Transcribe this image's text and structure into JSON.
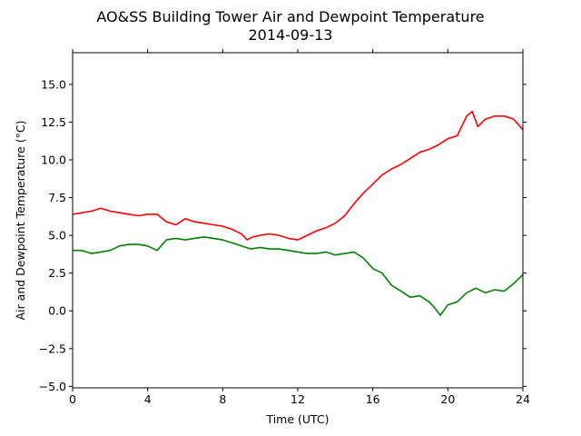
{
  "chart_data": {
    "type": "line",
    "title": "AO&SS Building Tower Air and Dewpoint Temperature",
    "subtitle": "2014-09-13",
    "xlabel": "Time (UTC)",
    "ylabel": "Air and Dewpoint Temperature (°C)",
    "xlim": [
      0,
      24
    ],
    "ylim": [
      -5.1,
      17.1
    ],
    "xticks": [
      0,
      4,
      8,
      12,
      16,
      20,
      24
    ],
    "xtick_labels": [
      "0",
      "4",
      "8",
      "12",
      "16",
      "20",
      "24"
    ],
    "yticks": [
      -5.0,
      -2.5,
      0.0,
      2.5,
      5.0,
      7.5,
      10.0,
      12.5,
      15.0
    ],
    "ytick_labels": [
      "−5.0",
      "−2.5",
      "0.0",
      "2.5",
      "5.0",
      "7.5",
      "10.0",
      "12.5",
      "15.0"
    ],
    "grid": false,
    "series": [
      {
        "color": "#ff0000",
        "x": [
          0,
          0.5,
          1.0,
          1.5,
          2.0,
          2.5,
          3.0,
          3.5,
          4.0,
          4.5,
          5.0,
          5.5,
          6.0,
          6.5,
          7.0,
          7.5,
          8.0,
          8.5,
          9.0,
          9.3,
          9.6,
          10.0,
          10.5,
          11.0,
          11.5,
          12.0,
          12.5,
          13.0,
          13.5,
          14.0,
          14.5,
          15.0,
          15.5,
          16.0,
          16.5,
          17.0,
          17.5,
          18.0,
          18.5,
          19.0,
          19.5,
          20.0,
          20.5,
          21.0,
          21.3,
          21.6,
          22.0,
          22.5,
          23.0,
          23.5,
          24.0
        ],
        "y": [
          6.4,
          6.5,
          6.6,
          6.8,
          6.6,
          6.5,
          6.4,
          6.3,
          6.4,
          6.4,
          5.9,
          5.7,
          6.1,
          5.9,
          5.8,
          5.7,
          5.6,
          5.4,
          5.1,
          4.7,
          4.9,
          5.0,
          5.1,
          5.0,
          4.8,
          4.7,
          5.0,
          5.3,
          5.5,
          5.8,
          6.3,
          7.1,
          7.8,
          8.4,
          9.0,
          9.4,
          9.7,
          10.1,
          10.5,
          10.7,
          11.0,
          11.4,
          11.6,
          12.9,
          13.2,
          12.2,
          12.7,
          12.9,
          12.9,
          12.7,
          12.0
        ]
      },
      {
        "color": "#008000",
        "x": [
          0,
          0.5,
          1.0,
          1.5,
          2.0,
          2.5,
          3.0,
          3.5,
          4.0,
          4.5,
          5.0,
          5.5,
          6.0,
          6.5,
          7.0,
          7.5,
          8.0,
          8.5,
          9.0,
          9.5,
          10.0,
          10.5,
          11.0,
          11.5,
          12.0,
          12.5,
          13.0,
          13.5,
          14.0,
          14.5,
          15.0,
          15.5,
          16.0,
          16.5,
          17.0,
          17.5,
          18.0,
          18.5,
          19.0,
          19.3,
          19.6,
          20.0,
          20.5,
          21.0,
          21.5,
          22.0,
          22.5,
          23.0,
          23.5,
          24.0
        ],
        "y": [
          4.0,
          4.0,
          3.8,
          3.9,
          4.0,
          4.3,
          4.4,
          4.4,
          4.3,
          4.0,
          4.7,
          4.8,
          4.7,
          4.8,
          4.9,
          4.8,
          4.7,
          4.5,
          4.3,
          4.1,
          4.2,
          4.1,
          4.1,
          4.0,
          3.9,
          3.8,
          3.8,
          3.9,
          3.7,
          3.8,
          3.9,
          3.5,
          2.8,
          2.5,
          1.7,
          1.3,
          0.9,
          1.0,
          0.6,
          0.2,
          -0.3,
          0.4,
          0.6,
          1.2,
          1.5,
          1.2,
          1.4,
          1.3,
          1.8,
          2.4
        ]
      }
    ]
  }
}
